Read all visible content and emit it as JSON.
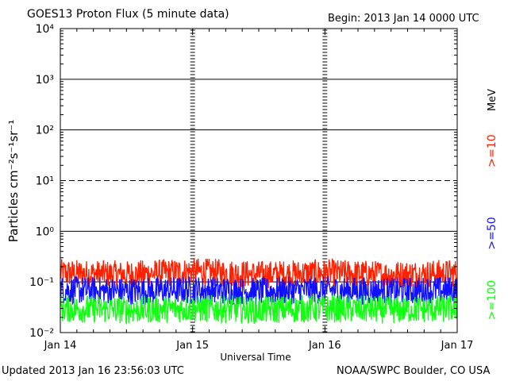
{
  "header": {
    "title": "GOES13 Proton Flux (5 minute data)",
    "begin": "Begin: 2013 Jan 14 0000 UTC"
  },
  "footer": {
    "updated": "Updated 2013 Jan 16 23:56:03 UTC",
    "credit": "NOAA/SWPC Boulder, CO USA"
  },
  "legend_labels": {
    "unit": "MeV",
    "ge10": ">=10",
    "ge50": ">=50",
    "ge100": ">=100"
  },
  "colors": {
    "ge10": "#ff2000",
    "ge50": "#1010ff",
    "ge100": "#10ff10",
    "axis": "#000000"
  },
  "chart_data": {
    "type": "line",
    "title": "GOES13 Proton Flux (5 minute data)",
    "xlabel": "Universal Time",
    "ylabel": "Particles cm⁻²s⁻¹sr⁻¹",
    "yscale": "log",
    "ylim": [
      0.01,
      10000
    ],
    "xlim": [
      "Jan 14",
      "Jan 17"
    ],
    "x_ticks": [
      "Jan 14",
      "Jan 15",
      "Jan 16",
      "Jan 17"
    ],
    "y_ticks": [
      "10⁻²",
      "10⁻¹",
      "10⁰",
      "10¹",
      "10²",
      "10³",
      "10⁴"
    ],
    "x": [
      "Jan 14",
      "Jan 14.5",
      "Jan 15",
      "Jan 15.5",
      "Jan 16",
      "Jan 16.5",
      "Jan 17"
    ],
    "series": [
      {
        "name": ">=10 MeV",
        "color": "#ff2000",
        "values": [
          0.15,
          0.14,
          0.16,
          0.14,
          0.15,
          0.14,
          0.15
        ]
      },
      {
        "name": ">=50 MeV",
        "color": "#1010ff",
        "values": [
          0.07,
          0.065,
          0.07,
          0.065,
          0.07,
          0.065,
          0.07
        ]
      },
      {
        "name": ">=100 MeV",
        "color": "#10ff10",
        "values": [
          0.03,
          0.028,
          0.03,
          0.028,
          0.03,
          0.028,
          0.03
        ]
      }
    ],
    "grid": true,
    "legend": "right"
  }
}
